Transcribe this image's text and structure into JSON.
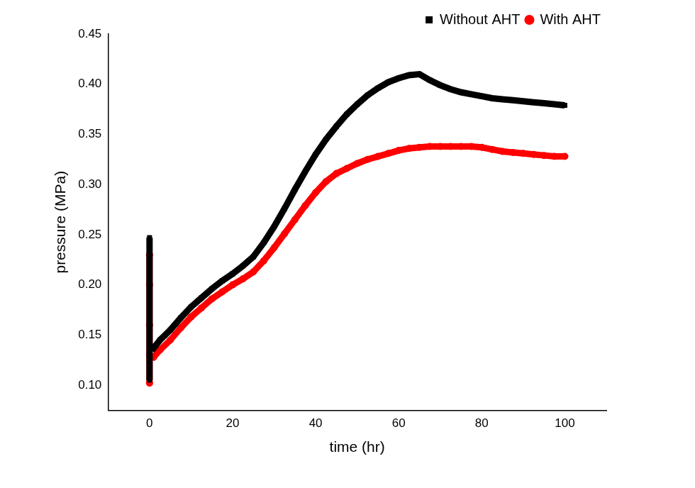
{
  "chart_data": {
    "type": "scatter",
    "x_label": "time (hr)",
    "y_label": "pressure (MPa)",
    "x": [
      0,
      0,
      0,
      0,
      0,
      1,
      2.5,
      5,
      7.5,
      10,
      12.5,
      15,
      17.5,
      20,
      22.5,
      25,
      27.5,
      30,
      32.5,
      35,
      37.5,
      40,
      42.5,
      45,
      47.5,
      50,
      52.5,
      55,
      57.5,
      60,
      62.5,
      65,
      67.5,
      70,
      72.5,
      75,
      77.5,
      80,
      82.5,
      85,
      87.5,
      90,
      92.5,
      95,
      97.5,
      100
    ],
    "series": [
      {
        "name": "Without AHT",
        "color": "#000000",
        "marker": "square",
        "values": [
          0.247,
          0.21,
          0.17,
          0.105,
          0.14,
          0.137,
          0.145,
          0.155,
          0.167,
          0.178,
          0.187,
          0.196,
          0.204,
          0.211,
          0.219,
          0.228,
          0.242,
          0.258,
          0.276,
          0.295,
          0.313,
          0.33,
          0.345,
          0.358,
          0.37,
          0.38,
          0.389,
          0.396,
          0.402,
          0.406,
          0.409,
          0.41,
          0.404,
          0.399,
          0.395,
          0.392,
          0.39,
          0.388,
          0.386,
          0.385,
          0.384,
          0.383,
          0.382,
          0.381,
          0.38,
          0.379
        ]
      },
      {
        "name": "With AHT",
        "color": "#ff0000",
        "marker": "circle",
        "values": [
          0.23,
          0.2,
          0.16,
          0.102,
          0.13,
          0.128,
          0.135,
          0.145,
          0.157,
          0.168,
          0.177,
          0.186,
          0.193,
          0.2,
          0.206,
          0.213,
          0.224,
          0.237,
          0.251,
          0.265,
          0.279,
          0.292,
          0.303,
          0.311,
          0.316,
          0.321,
          0.325,
          0.328,
          0.331,
          0.334,
          0.336,
          0.337,
          0.338,
          0.338,
          0.338,
          0.338,
          0.338,
          0.337,
          0.335,
          0.333,
          0.332,
          0.331,
          0.33,
          0.329,
          0.328,
          0.328
        ]
      }
    ],
    "xlim": [
      -10,
      110
    ],
    "xticks": [
      0,
      20,
      40,
      60,
      80,
      100
    ],
    "ylim": [
      0.075,
      0.45
    ],
    "yticks": [
      {
        "value": 0.1,
        "label": "0.10"
      },
      0.15,
      {
        "value": 0.2,
        "label": "0.20"
      },
      0.25,
      {
        "value": 0.3,
        "label": "0.30"
      },
      0.35,
      {
        "value": 0.4,
        "label": "0.40"
      },
      0.45
    ],
    "grid": false,
    "legend": "upper right"
  }
}
